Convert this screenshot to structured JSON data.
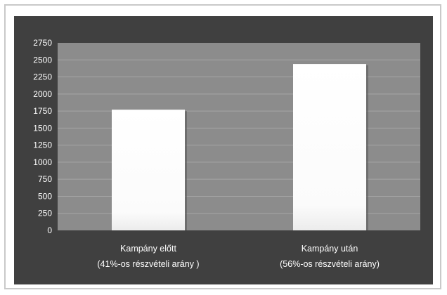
{
  "chart_data": {
    "type": "bar",
    "categories": [
      [
        "Kampány előtt",
        "(41%-os részvételi arány )"
      ],
      [
        "Kampány után",
        "(56%-os részvételi arány)"
      ]
    ],
    "values": [
      1770,
      2440
    ],
    "yticks": [
      "0",
      "250",
      "500",
      "750",
      "1000",
      "1250",
      "1500",
      "1750",
      "2000",
      "2250",
      "2500",
      "2750"
    ],
    "ylim": [
      0,
      2750
    ],
    "grid": true,
    "legend": "none",
    "title": "",
    "xlabel": "",
    "ylabel": "",
    "colors": {
      "panel": "#404040",
      "plot_area": "#8c8c8c",
      "gridline": "#a6a6a6",
      "bar": "#ffffff",
      "text": "#ffffff"
    }
  }
}
